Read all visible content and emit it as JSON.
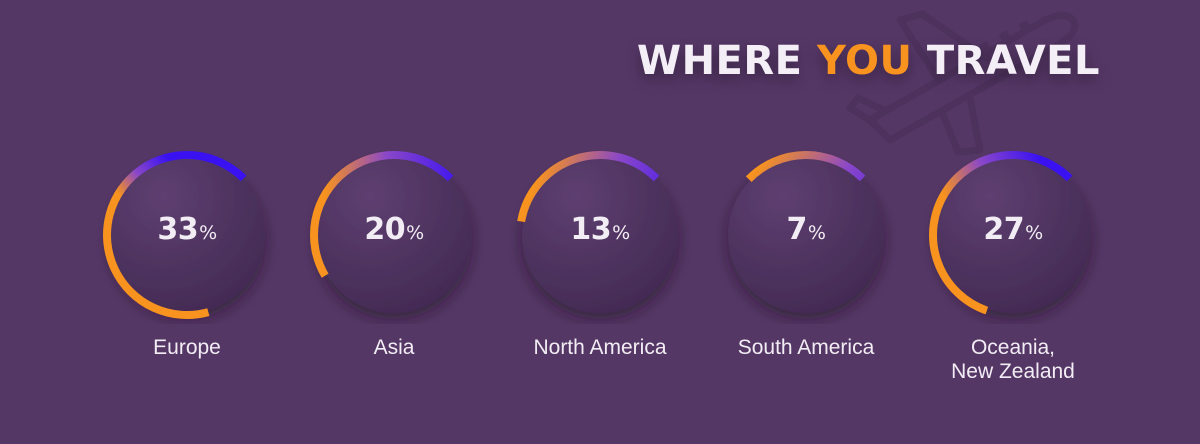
{
  "title": {
    "prefix": "WHERE ",
    "accent": "YOU",
    "suffix": " TRAVEL"
  },
  "colors": {
    "background": "#553766",
    "accent": "#f7931e",
    "ring_start": "#f7931e",
    "ring_mid": "#8a47c9",
    "ring_end": "#3a12f2",
    "text": "#f2edf4"
  },
  "decor": {
    "background_icon": "airplane-icon"
  },
  "chart_data": {
    "type": "pie",
    "unit": "%",
    "title": "WHERE YOU TRAVEL",
    "categories": [
      "Europe",
      "Asia",
      "North America",
      "South America",
      "Oceania, New Zealand"
    ],
    "values": [
      33,
      20,
      13,
      7,
      27
    ],
    "items": [
      {
        "label": "Europe",
        "value": 33,
        "label_lines": [
          "Europe"
        ]
      },
      {
        "label": "Asia",
        "value": 20,
        "label_lines": [
          "Asia"
        ]
      },
      {
        "label": "North America",
        "value": 13,
        "label_lines": [
          "North America"
        ]
      },
      {
        "label": "South America",
        "value": 7,
        "label_lines": [
          "South America"
        ]
      },
      {
        "label": "Oceania, New Zealand",
        "value": 27,
        "label_lines": [
          "Oceania,",
          "New Zealand"
        ]
      }
    ]
  }
}
